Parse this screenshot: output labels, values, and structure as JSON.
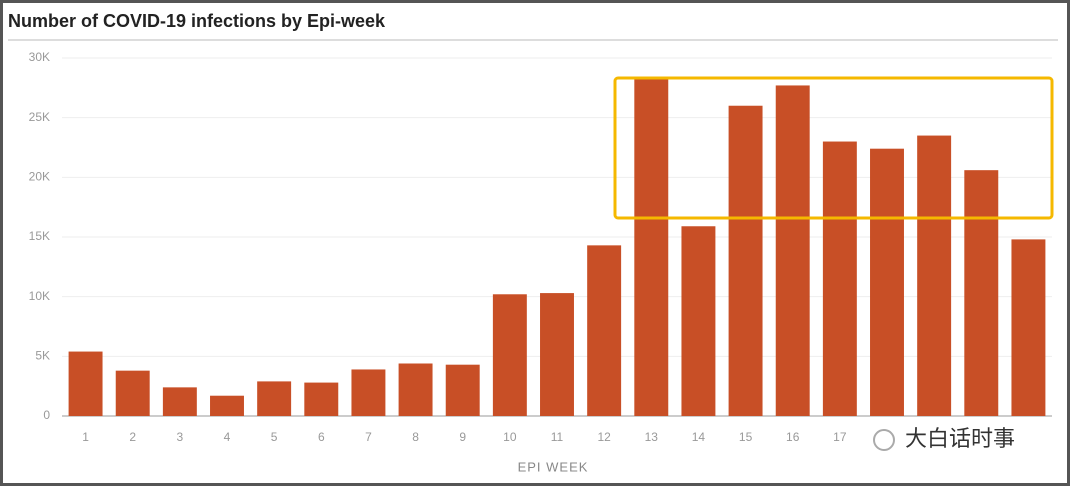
{
  "chart_data": {
    "type": "bar",
    "title": "Number of COVID-19 infections by Epi-week",
    "x_label": "EPI WEEK",
    "watermark": "大白话时事",
    "categories": [
      "1",
      "2",
      "3",
      "4",
      "5",
      "6",
      "7",
      "8",
      "9",
      "10",
      "11",
      "12",
      "13",
      "14",
      "15",
      "16",
      "17",
      null,
      null,
      null,
      null
    ],
    "values": [
      5400,
      3800,
      2400,
      1700,
      2900,
      2800,
      3900,
      4400,
      4300,
      10200,
      10300,
      14300,
      28200,
      15900,
      26000,
      27700,
      23000,
      22400,
      23500,
      20600,
      14800
    ],
    "color": "#c84f26",
    "ylim": [
      0,
      30000
    ],
    "yticks": [
      0,
      {
        "value": 5000,
        "label": "5K"
      },
      {
        "value": 10000,
        "label": "10K"
      },
      {
        "value": 15000,
        "label": "15K"
      },
      {
        "value": 20000,
        "label": "20K"
      },
      {
        "value": 25000,
        "label": "25K"
      },
      {
        "value": 30000,
        "label": "30K"
      }
    ],
    "grid": true
  }
}
